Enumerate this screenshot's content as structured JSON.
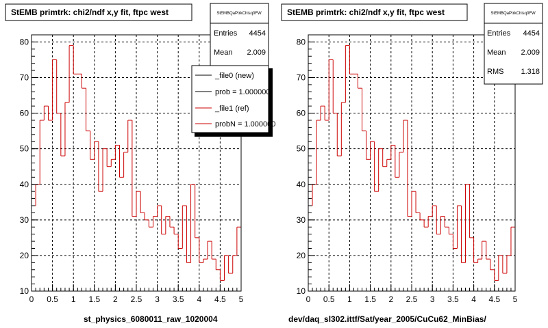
{
  "colors": {
    "background": "#ffffff",
    "frame": "#000000",
    "grid": "#000000",
    "histogram": "#cc0000",
    "legend_new": "#000000",
    "legend_ref": "#cc0000"
  },
  "chart_data": [
    {
      "type": "histogram",
      "title": "StEMB primtrk: chi2/ndf x,y fit, ftpc west",
      "xlabel": "st_physics_6080011_raw_1020004",
      "xlim": [
        0,
        5
      ],
      "ylim": [
        10,
        82
      ],
      "xticks": [
        "0",
        "0.5",
        "1",
        "1.5",
        "2",
        "2.5",
        "3",
        "3.5",
        "4",
        "4.5",
        "5"
      ],
      "yticks": [
        "10",
        "20",
        "30",
        "40",
        "50",
        "60",
        "70",
        "80"
      ],
      "grid": true,
      "stats": {
        "name": "StEMBQaPtrkChisq0FW",
        "rows": [
          {
            "label": "Entries",
            "value": "4454"
          },
          {
            "label": "Mean",
            "value": "2.009"
          }
        ]
      },
      "legend": {
        "placement": "top-right",
        "entries": [
          {
            "label": "_file0 (new)",
            "color": "#000000"
          },
          {
            "label": "prob = 1.000000",
            "color": "#000000"
          },
          {
            "label": "_file1 (ref)",
            "color": "#cc0000"
          },
          {
            "label": "probN = 1.000000",
            "color": "#cc0000"
          }
        ]
      },
      "bin_width": 0.1,
      "bin_starts": [
        0,
        0.1,
        0.2,
        0.3,
        0.4,
        0.5,
        0.6,
        0.7,
        0.8,
        0.9,
        1.0,
        1.1,
        1.2,
        1.3,
        1.4,
        1.5,
        1.6,
        1.7,
        1.8,
        1.9,
        2.0,
        2.1,
        2.2,
        2.3,
        2.4,
        2.5,
        2.6,
        2.7,
        2.8,
        2.9,
        3.0,
        3.1,
        3.2,
        3.3,
        3.4,
        3.5,
        3.6,
        3.7,
        3.8,
        3.9,
        4.0,
        4.1,
        4.2,
        4.3,
        4.4,
        4.5,
        4.6,
        4.7,
        4.8,
        4.9
      ],
      "values": [
        34,
        40,
        58,
        62,
        58,
        75,
        60,
        48,
        63,
        79,
        71,
        71,
        67,
        55,
        47,
        52,
        38,
        50,
        45,
        47,
        51,
        42,
        49,
        58,
        31,
        38,
        32,
        30,
        28,
        31,
        34,
        26,
        31,
        28,
        26,
        22,
        34,
        18,
        40,
        25,
        18,
        19,
        24,
        19,
        16,
        13,
        20,
        15,
        20,
        28
      ]
    },
    {
      "type": "histogram",
      "title": "StEMB primtrk: chi2/ndf x,y fit, ftpc west",
      "xlabel": "dev/daq_sl302.ittf/Sat/year_2005/CuCu62_MinBias/",
      "xlim": [
        0,
        5
      ],
      "ylim": [
        10,
        82
      ],
      "xticks": [
        "0",
        "0.5",
        "1",
        "1.5",
        "2",
        "2.5",
        "3",
        "3.5",
        "4",
        "4.5",
        "5"
      ],
      "yticks": [
        "10",
        "20",
        "30",
        "40",
        "50",
        "60",
        "70",
        "80"
      ],
      "grid": true,
      "stats": {
        "name": "StEMBQaPtrkChisq0FW",
        "rows": [
          {
            "label": "Entries",
            "value": "4454"
          },
          {
            "label": "Mean",
            "value": "2.009"
          },
          {
            "label": "RMS",
            "value": "1.318"
          }
        ]
      },
      "bin_width": 0.1,
      "bin_starts": [
        0,
        0.1,
        0.2,
        0.3,
        0.4,
        0.5,
        0.6,
        0.7,
        0.8,
        0.9,
        1.0,
        1.1,
        1.2,
        1.3,
        1.4,
        1.5,
        1.6,
        1.7,
        1.8,
        1.9,
        2.0,
        2.1,
        2.2,
        2.3,
        2.4,
        2.5,
        2.6,
        2.7,
        2.8,
        2.9,
        3.0,
        3.1,
        3.2,
        3.3,
        3.4,
        3.5,
        3.6,
        3.7,
        3.8,
        3.9,
        4.0,
        4.1,
        4.2,
        4.3,
        4.4,
        4.5,
        4.6,
        4.7,
        4.8,
        4.9
      ],
      "values": [
        34,
        40,
        58,
        62,
        58,
        75,
        60,
        48,
        63,
        79,
        71,
        71,
        67,
        55,
        47,
        52,
        38,
        50,
        45,
        47,
        51,
        42,
        49,
        58,
        31,
        38,
        32,
        30,
        28,
        31,
        34,
        26,
        31,
        28,
        26,
        22,
        34,
        18,
        40,
        25,
        18,
        19,
        24,
        19,
        16,
        13,
        20,
        15,
        20,
        28
      ]
    }
  ]
}
